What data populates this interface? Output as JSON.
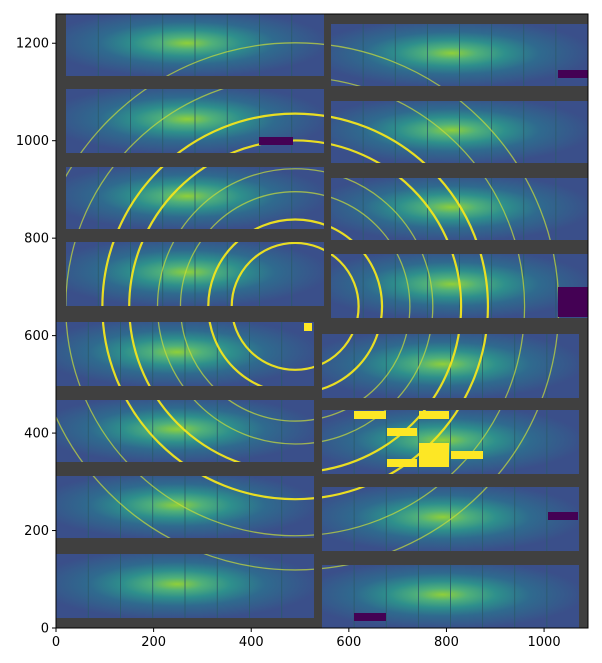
{
  "figure": {
    "axes": {
      "x_ticks": [
        0,
        200,
        400,
        600,
        800,
        1000
      ],
      "y_ticks": [
        0,
        200,
        400,
        600,
        800,
        1000,
        1200
      ],
      "x_range": [
        0,
        1090
      ],
      "y_range": [
        0,
        1260
      ],
      "colormap": "viridis",
      "background_gap_color": "#404040"
    },
    "image": {
      "description_kind": "detector-image",
      "beam_center_data": [
        490,
        660
      ],
      "rings_radius_data": [
        130,
        178,
        235,
        282,
        340,
        395,
        470,
        540
      ]
    }
  }
}
